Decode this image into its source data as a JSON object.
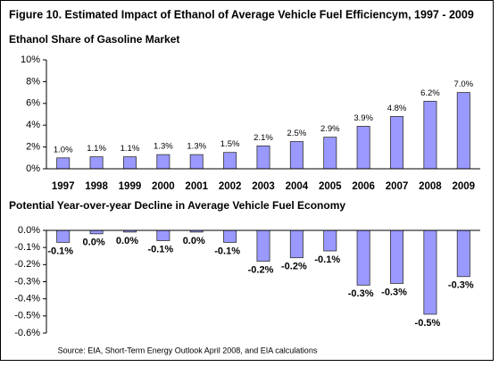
{
  "figure_title": "Figure 10.  Estimated Impact of Ethanol of Average Vehicle Fuel Efficiencym, 1997 - 2009",
  "source": "Source: EIA, Short-Term Energy Outlook April 2008, and EIA calculations",
  "chart_data": [
    {
      "type": "bar",
      "title": "Ethanol Share of Gasoline Market",
      "categories": [
        "1997",
        "1998",
        "1999",
        "2000",
        "2001",
        "2002",
        "2003",
        "2004",
        "2005",
        "2006",
        "2007",
        "2008",
        "2009"
      ],
      "values": [
        1.0,
        1.1,
        1.1,
        1.3,
        1.3,
        1.5,
        2.1,
        2.5,
        2.9,
        3.9,
        4.8,
        6.2,
        7.0
      ],
      "value_labels": [
        "1.0%",
        "1.1%",
        "1.1%",
        "1.3%",
        "1.3%",
        "1.5%",
        "2.1%",
        "2.5%",
        "2.9%",
        "3.9%",
        "4.8%",
        "6.2%",
        "7.0%"
      ],
      "color": "#9999ff",
      "ylim": [
        0,
        10
      ],
      "yticks": [
        {
          "value": 0,
          "label": "0%"
        },
        {
          "value": 2,
          "label": "2%"
        },
        {
          "value": 4,
          "label": "4%"
        },
        {
          "value": 6,
          "label": "6%"
        },
        {
          "value": 8,
          "label": "8%"
        },
        {
          "value": 10,
          "label": "10%"
        }
      ]
    },
    {
      "type": "bar",
      "title": "Potential Year-over-year Decline in Average Vehicle Fuel Economy",
      "values": [
        -0.07,
        -0.02,
        -0.01,
        -0.06,
        -0.01,
        -0.07,
        -0.18,
        -0.16,
        -0.12,
        -0.32,
        -0.31,
        -0.49,
        -0.27
      ],
      "value_labels": [
        "-0.1%",
        "0.0%",
        "0.0%",
        "-0.1%",
        "0.0%",
        "-0.1%",
        "-0.2%",
        "-0.2%",
        "-0.1%",
        "-0.3%",
        "-0.3%",
        "-0.5%",
        "-0.3%"
      ],
      "color": "#9999ff",
      "ylim": [
        -0.6,
        0
      ],
      "yticks": [
        {
          "value": 0,
          "label": "0.0%"
        },
        {
          "value": -0.1,
          "label": "-0.1%"
        },
        {
          "value": -0.2,
          "label": "-0.2%"
        },
        {
          "value": -0.3,
          "label": "-0.3%"
        },
        {
          "value": -0.4,
          "label": "-0.4%"
        },
        {
          "value": -0.5,
          "label": "-0.5%"
        },
        {
          "value": -0.6,
          "label": "-0.6%"
        }
      ]
    }
  ]
}
